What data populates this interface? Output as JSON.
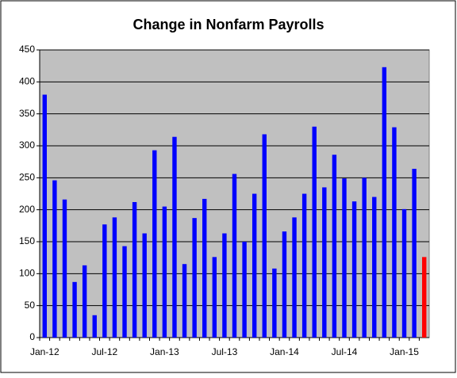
{
  "chart_data": {
    "type": "bar",
    "title": "Change in Nonfarm Payrolls",
    "categories": [
      "Jan-12",
      null,
      null,
      null,
      null,
      null,
      "Jul-12",
      null,
      null,
      null,
      null,
      null,
      "Jan-13",
      null,
      null,
      null,
      null,
      null,
      "Jul-13",
      null,
      null,
      null,
      null,
      null,
      "Jan-14",
      null,
      null,
      null,
      null,
      null,
      "Jul-14",
      null,
      null,
      null,
      null,
      null,
      "Jan-15",
      null,
      null
    ],
    "values": [
      380,
      246,
      216,
      87,
      113,
      35,
      177,
      188,
      143,
      212,
      163,
      293,
      205,
      314,
      115,
      187,
      217,
      126,
      163,
      256,
      150,
      225,
      318,
      108,
      166,
      188,
      225,
      330,
      235,
      286,
      249,
      213,
      250,
      220,
      423,
      329,
      201,
      264,
      126
    ],
    "colors": [
      "#0000ff",
      "#0000ff",
      "#0000ff",
      "#0000ff",
      "#0000ff",
      "#0000ff",
      "#0000ff",
      "#0000ff",
      "#0000ff",
      "#0000ff",
      "#0000ff",
      "#0000ff",
      "#0000ff",
      "#0000ff",
      "#0000ff",
      "#0000ff",
      "#0000ff",
      "#0000ff",
      "#0000ff",
      "#0000ff",
      "#0000ff",
      "#0000ff",
      "#0000ff",
      "#0000ff",
      "#0000ff",
      "#0000ff",
      "#0000ff",
      "#0000ff",
      "#0000ff",
      "#0000ff",
      "#0000ff",
      "#0000ff",
      "#0000ff",
      "#0000ff",
      "#0000ff",
      "#0000ff",
      "#0000ff",
      "#0000ff",
      "#ff0000"
    ],
    "ylim": [
      0,
      450
    ],
    "yticks": [
      0,
      50,
      100,
      150,
      200,
      250,
      300,
      350,
      400,
      450
    ],
    "grid": true
  }
}
